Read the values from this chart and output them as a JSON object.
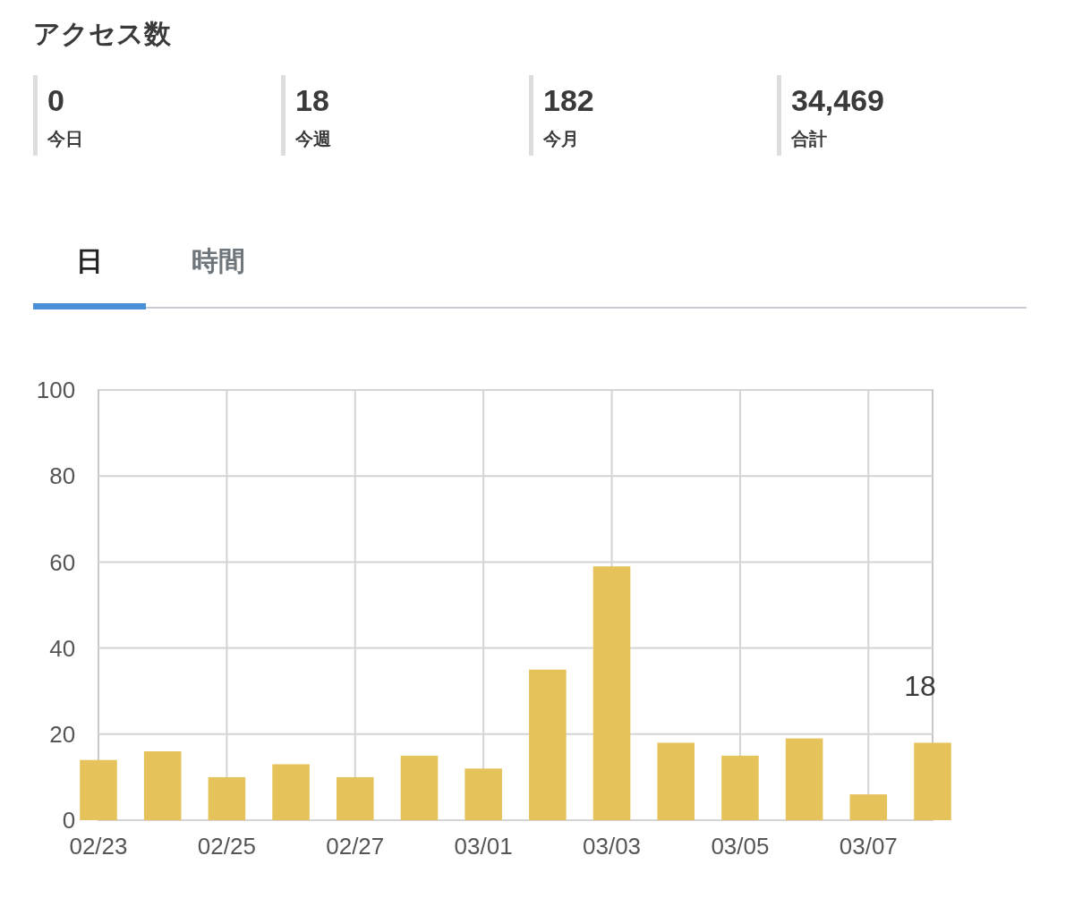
{
  "chart_data": [
    {
      "type": "other",
      "title": "アクセス数",
      "categories": [
        "今日",
        "今週",
        "今月",
        "合計"
      ],
      "value_labels": [
        "0",
        "18",
        "182",
        "34,469"
      ],
      "annotations": [
        "日",
        "時間"
      ]
    },
    {
      "type": "bar",
      "categories": [
        "02/23",
        null,
        "02/25",
        null,
        "02/27",
        null,
        "03/01",
        null,
        "03/03",
        null,
        "03/05",
        null,
        "03/07",
        null
      ],
      "values": [
        14,
        16,
        10,
        13,
        10,
        15,
        12,
        35,
        59,
        18,
        15,
        19,
        6,
        18
      ],
      "value_labels": [
        null,
        null,
        null,
        null,
        null,
        null,
        null,
        null,
        null,
        null,
        null,
        null,
        null,
        "18"
      ],
      "color": "#e5c35a",
      "ylim": [
        0,
        100
      ],
      "yticks": [
        0,
        20,
        40,
        60,
        80,
        100
      ],
      "grid": true
    }
  ]
}
